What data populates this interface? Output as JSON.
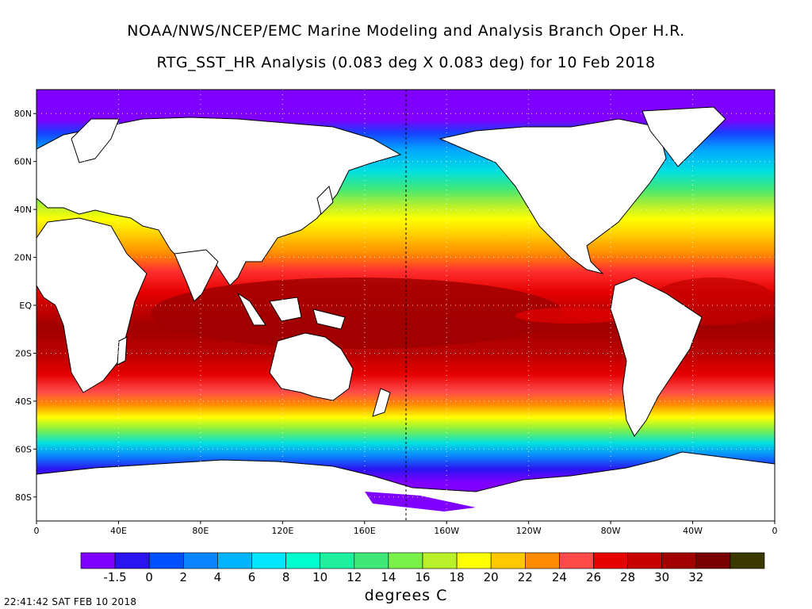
{
  "title_line1": "NOAA/NWS/NCEP/EMC Marine Modeling and Analysis Branch Oper H.R.",
  "title_line2": "RTG_SST_HR Analysis (0.083 deg X 0.083 deg) for 10 Feb 2018",
  "map": {
    "lat_labels": [
      "80N",
      "60N",
      "40N",
      "20N",
      "EQ",
      "20S",
      "40S",
      "60S",
      "80S"
    ],
    "lat_values": [
      80,
      60,
      40,
      20,
      0,
      -20,
      -40,
      -60,
      -80
    ],
    "lon_labels": [
      "0",
      "40E",
      "80E",
      "120E",
      "160E",
      "160W",
      "120W",
      "80W",
      "40W",
      "0"
    ],
    "lon_values": [
      0,
      40,
      80,
      120,
      160,
      200,
      240,
      280,
      320,
      360
    ],
    "lat_range": [
      -90,
      90
    ],
    "lon_range": [
      0,
      360
    ],
    "grid": "dotted",
    "land_color": "#ffffff"
  },
  "colorbar": {
    "labels": [
      "-1.5",
      "0",
      "2",
      "4",
      "6",
      "8",
      "10",
      "12",
      "14",
      "16",
      "18",
      "20",
      "22",
      "24",
      "26",
      "28",
      "30",
      "32"
    ],
    "colors": [
      "#7f00ff",
      "#2a14f0",
      "#0050ff",
      "#0a84ff",
      "#00b4ff",
      "#00e6ff",
      "#00ffcc",
      "#1ff0a0",
      "#40e878",
      "#7af04a",
      "#b8f02a",
      "#ffff00",
      "#ffc800",
      "#ff8c00",
      "#ff4a4a",
      "#e60000",
      "#c80000",
      "#a00000",
      "#7a0000",
      "#3a3a00"
    ],
    "units_label": "degrees C"
  },
  "timestamp": "22:41:42  SAT FEB 10 2018"
}
